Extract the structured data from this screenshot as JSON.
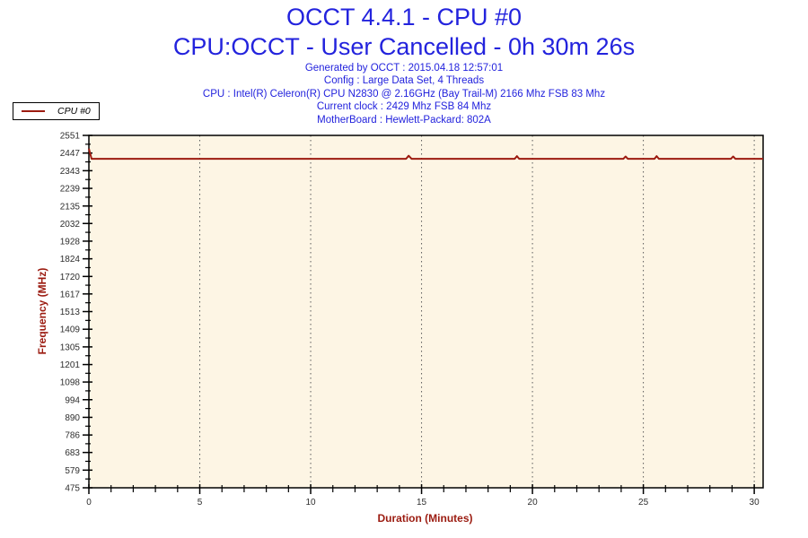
{
  "header": {
    "title_line1": "OCCT 4.4.1 - CPU #0",
    "title_line2": "CPU:OCCT - User Cancelled - 0h 30m 26s",
    "info_lines": [
      "Generated by OCCT : 2015.04.18 12:57:01",
      "Config : Large Data Set, 4 Threads",
      "CPU : Intel(R) Celeron(R) CPU N2830 @ 2.16GHz (Bay Trail-M) 2166 Mhz FSB 83 Mhz",
      "Current clock : 2429 Mhz FSB 84 Mhz",
      "MotherBoard : Hewlett-Packard: 802A"
    ]
  },
  "legend": {
    "label": "CPU #0"
  },
  "colors": {
    "title_blue": "#2323dd",
    "axis_label_red": "#9b1b10",
    "line_red": "#9d1b10",
    "plot_bg": "#fdf5e4",
    "grid": "#5a5a5a",
    "tick_text": "#2e2e2e",
    "axis": "#000000"
  },
  "chart_data": {
    "type": "line",
    "title": "",
    "xlabel": "Duration (Minutes)",
    "ylabel": "Frequency (MHz)",
    "xlim": [
      0,
      30.4
    ],
    "ylim": [
      475,
      2551
    ],
    "x_major_ticks": [
      0,
      5,
      10,
      15,
      20,
      25,
      30
    ],
    "x_minor_interval": 1,
    "y_tick_labels": [
      2551,
      2447,
      2343,
      2239,
      2135,
      2032,
      1928,
      1824,
      1720,
      1617,
      1513,
      1409,
      1305,
      1201,
      1098,
      994,
      890,
      786,
      683,
      579,
      475
    ],
    "grid": {
      "vertical_dotted_at_x_major": true,
      "horizontal": false
    },
    "legend_position": "top-left-outside",
    "series": [
      {
        "name": "CPU #0",
        "color": "#9d1b10",
        "points": [
          [
            0,
            2473
          ],
          [
            0.12,
            2413
          ],
          [
            14.3,
            2413
          ],
          [
            14.42,
            2431
          ],
          [
            14.55,
            2413
          ],
          [
            19.2,
            2413
          ],
          [
            19.3,
            2429
          ],
          [
            19.4,
            2413
          ],
          [
            24.1,
            2413
          ],
          [
            24.2,
            2427
          ],
          [
            24.3,
            2413
          ],
          [
            25.5,
            2413
          ],
          [
            25.6,
            2429
          ],
          [
            25.7,
            2413
          ],
          [
            28.95,
            2413
          ],
          [
            29.05,
            2427
          ],
          [
            29.15,
            2413
          ],
          [
            30.4,
            2413
          ]
        ]
      }
    ]
  }
}
